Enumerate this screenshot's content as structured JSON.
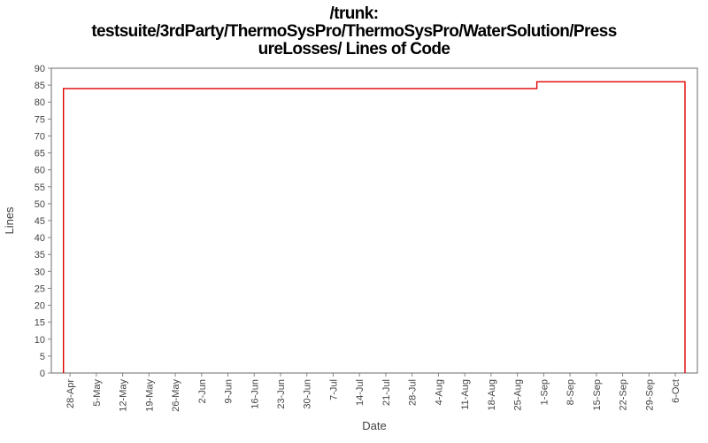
{
  "title": {
    "line1": "/trunk:",
    "line2": "testsuite/3rdParty/ThermoSysPro/ThermoSysPro/WaterSolution/Press",
    "line3": "ureLosses/ Lines of Code"
  },
  "chart_data": {
    "type": "line",
    "subtype": "step",
    "title": "/trunk: testsuite/3rdParty/ThermoSysPro/ThermoSysPro/WaterSolution/PressureLosses/ Lines of Code",
    "xlabel": "Date",
    "ylabel": "Lines",
    "grid": false,
    "legend": false,
    "y_range": [
      0,
      90
    ],
    "y_ticks": [
      0,
      5,
      10,
      15,
      20,
      25,
      30,
      35,
      40,
      45,
      50,
      55,
      60,
      65,
      70,
      75,
      80,
      85,
      90
    ],
    "x_tick_labels": [
      "28-Apr",
      "5-May",
      "12-May",
      "19-May",
      "26-May",
      "2-Jun",
      "9-Jun",
      "16-Jun",
      "23-Jun",
      "30-Jun",
      "7-Jul",
      "14-Jul",
      "21-Jul",
      "28-Jul",
      "4-Aug",
      "11-Aug",
      "18-Aug",
      "25-Aug",
      "1-Sep",
      "8-Sep",
      "15-Sep",
      "22-Sep",
      "29-Sep",
      "6-Oct"
    ],
    "x_range_weeks": [
      -0.71,
      23.84
    ],
    "line_color": "#e00000",
    "axis_color": "#848484",
    "tick_label_color": "#444444",
    "axis_title_color": "#404040",
    "series": [
      {
        "name": "Lines of Code",
        "description": "LOC jumps from 0 to 84 around 26-Apr, stays at 84 until ~30-Aug, rises to 86, stays at 86 until ~9-Oct where the data ends (drops to axis).",
        "step_points_weeks": [
          [
            -0.25,
            0
          ],
          [
            -0.25,
            84
          ],
          [
            17.74,
            84
          ],
          [
            17.74,
            86
          ],
          [
            23.37,
            86
          ],
          [
            23.37,
            0
          ]
        ],
        "key_values": [
          {
            "date": "26-Apr",
            "lines": 84
          },
          {
            "date": "30-Aug",
            "lines": 86
          },
          {
            "date": "9-Oct",
            "lines": 86
          }
        ]
      }
    ]
  }
}
